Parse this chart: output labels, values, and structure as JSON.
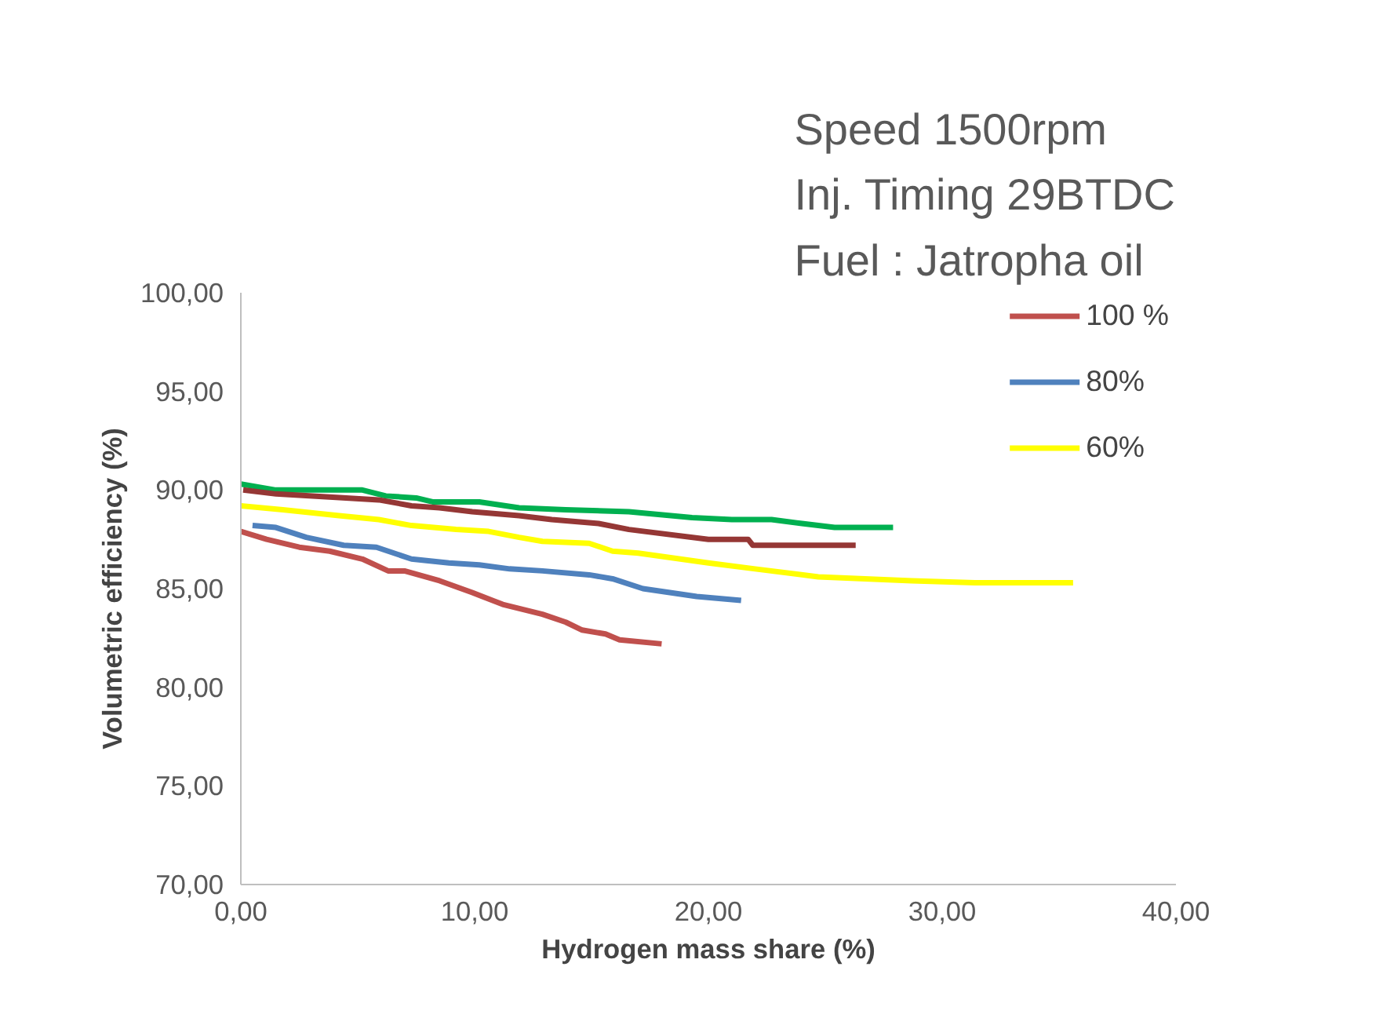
{
  "chart_data": {
    "type": "line",
    "title": "Speed 1500rpm\nInj. Timing 29BTDC\nFuel : Jatropha oil",
    "xlabel": "Hydrogen mass share (%)",
    "ylabel": "Volumetric efficiency (%)",
    "xlim": [
      0,
      40
    ],
    "ylim": [
      70,
      100
    ],
    "xticks": [
      {
        "value": 0,
        "label": "0,00"
      },
      {
        "value": 10,
        "label": "10,00"
      },
      {
        "value": 20,
        "label": "20,00"
      },
      {
        "value": 30,
        "label": "30,00"
      },
      {
        "value": 40,
        "label": "40,00"
      }
    ],
    "yticks": [
      {
        "value": 70,
        "label": "70,00"
      },
      {
        "value": 75,
        "label": "75,00"
      },
      {
        "value": 80,
        "label": "80,00"
      },
      {
        "value": 85,
        "label": "85,00"
      },
      {
        "value": 90,
        "label": "90,00"
      },
      {
        "value": 95,
        "label": "95,00"
      },
      {
        "value": 100,
        "label": "100,00"
      }
    ],
    "grid": false,
    "legend": "top right",
    "marker": "none",
    "line_style": "solid",
    "series": [
      {
        "name": "100 %",
        "color": "#c0504d",
        "x": [
          0.0,
          1.1,
          2.5,
          3.8,
          5.2,
          6.3,
          7.0,
          8.5,
          9.9,
          11.2,
          12.9,
          13.9,
          14.6,
          15.6,
          16.2,
          18.0
        ],
        "values": [
          87.9,
          87.5,
          87.1,
          86.9,
          86.5,
          85.9,
          85.9,
          85.4,
          84.8,
          84.2,
          83.7,
          83.3,
          82.9,
          82.7,
          82.4,
          82.2
        ]
      },
      {
        "name": "80%",
        "color": "#4f81bd",
        "x": [
          0.5,
          1.5,
          2.8,
          4.4,
          5.8,
          7.3,
          8.9,
          10.2,
          11.5,
          12.9,
          14.9,
          15.9,
          17.2,
          19.5,
          21.4
        ],
        "values": [
          88.2,
          88.1,
          87.6,
          87.2,
          87.1,
          86.5,
          86.3,
          86.2,
          86.0,
          85.9,
          85.7,
          85.5,
          85.0,
          84.6,
          84.4
        ]
      },
      {
        "name": "60%",
        "color": "#ffff00",
        "x": [
          0.0,
          1.8,
          4.2,
          5.9,
          7.3,
          9.2,
          10.6,
          11.9,
          12.9,
          14.9,
          15.9,
          17.0,
          20.0,
          22.0,
          24.7,
          28.7,
          31.4,
          35.6
        ],
        "values": [
          89.2,
          89.0,
          88.7,
          88.5,
          88.2,
          88.0,
          87.9,
          87.6,
          87.4,
          87.3,
          86.9,
          86.8,
          86.3,
          86.0,
          85.6,
          85.4,
          85.3,
          85.3
        ]
      },
      {
        "color": "#00b050",
        "x": [
          0.0,
          1.5,
          5.2,
          6.2,
          7.5,
          8.2,
          10.2,
          11.9,
          13.9,
          16.6,
          19.3,
          21.0,
          22.7,
          24.0,
          25.4,
          27.9
        ],
        "values": [
          90.3,
          90.0,
          90.0,
          89.7,
          89.6,
          89.4,
          89.4,
          89.1,
          89.0,
          88.9,
          88.6,
          88.5,
          88.5,
          88.3,
          88.1,
          88.1
        ]
      },
      {
        "color": "#953735",
        "x": [
          0.1,
          1.5,
          4.5,
          5.9,
          7.3,
          8.5,
          9.9,
          11.9,
          13.3,
          15.3,
          16.6,
          20.0,
          21.7,
          21.9,
          26.3
        ],
        "values": [
          90.0,
          89.8,
          89.6,
          89.5,
          89.2,
          89.1,
          88.9,
          88.7,
          88.5,
          88.3,
          88.0,
          87.5,
          87.5,
          87.2,
          87.2
        ]
      }
    ]
  }
}
